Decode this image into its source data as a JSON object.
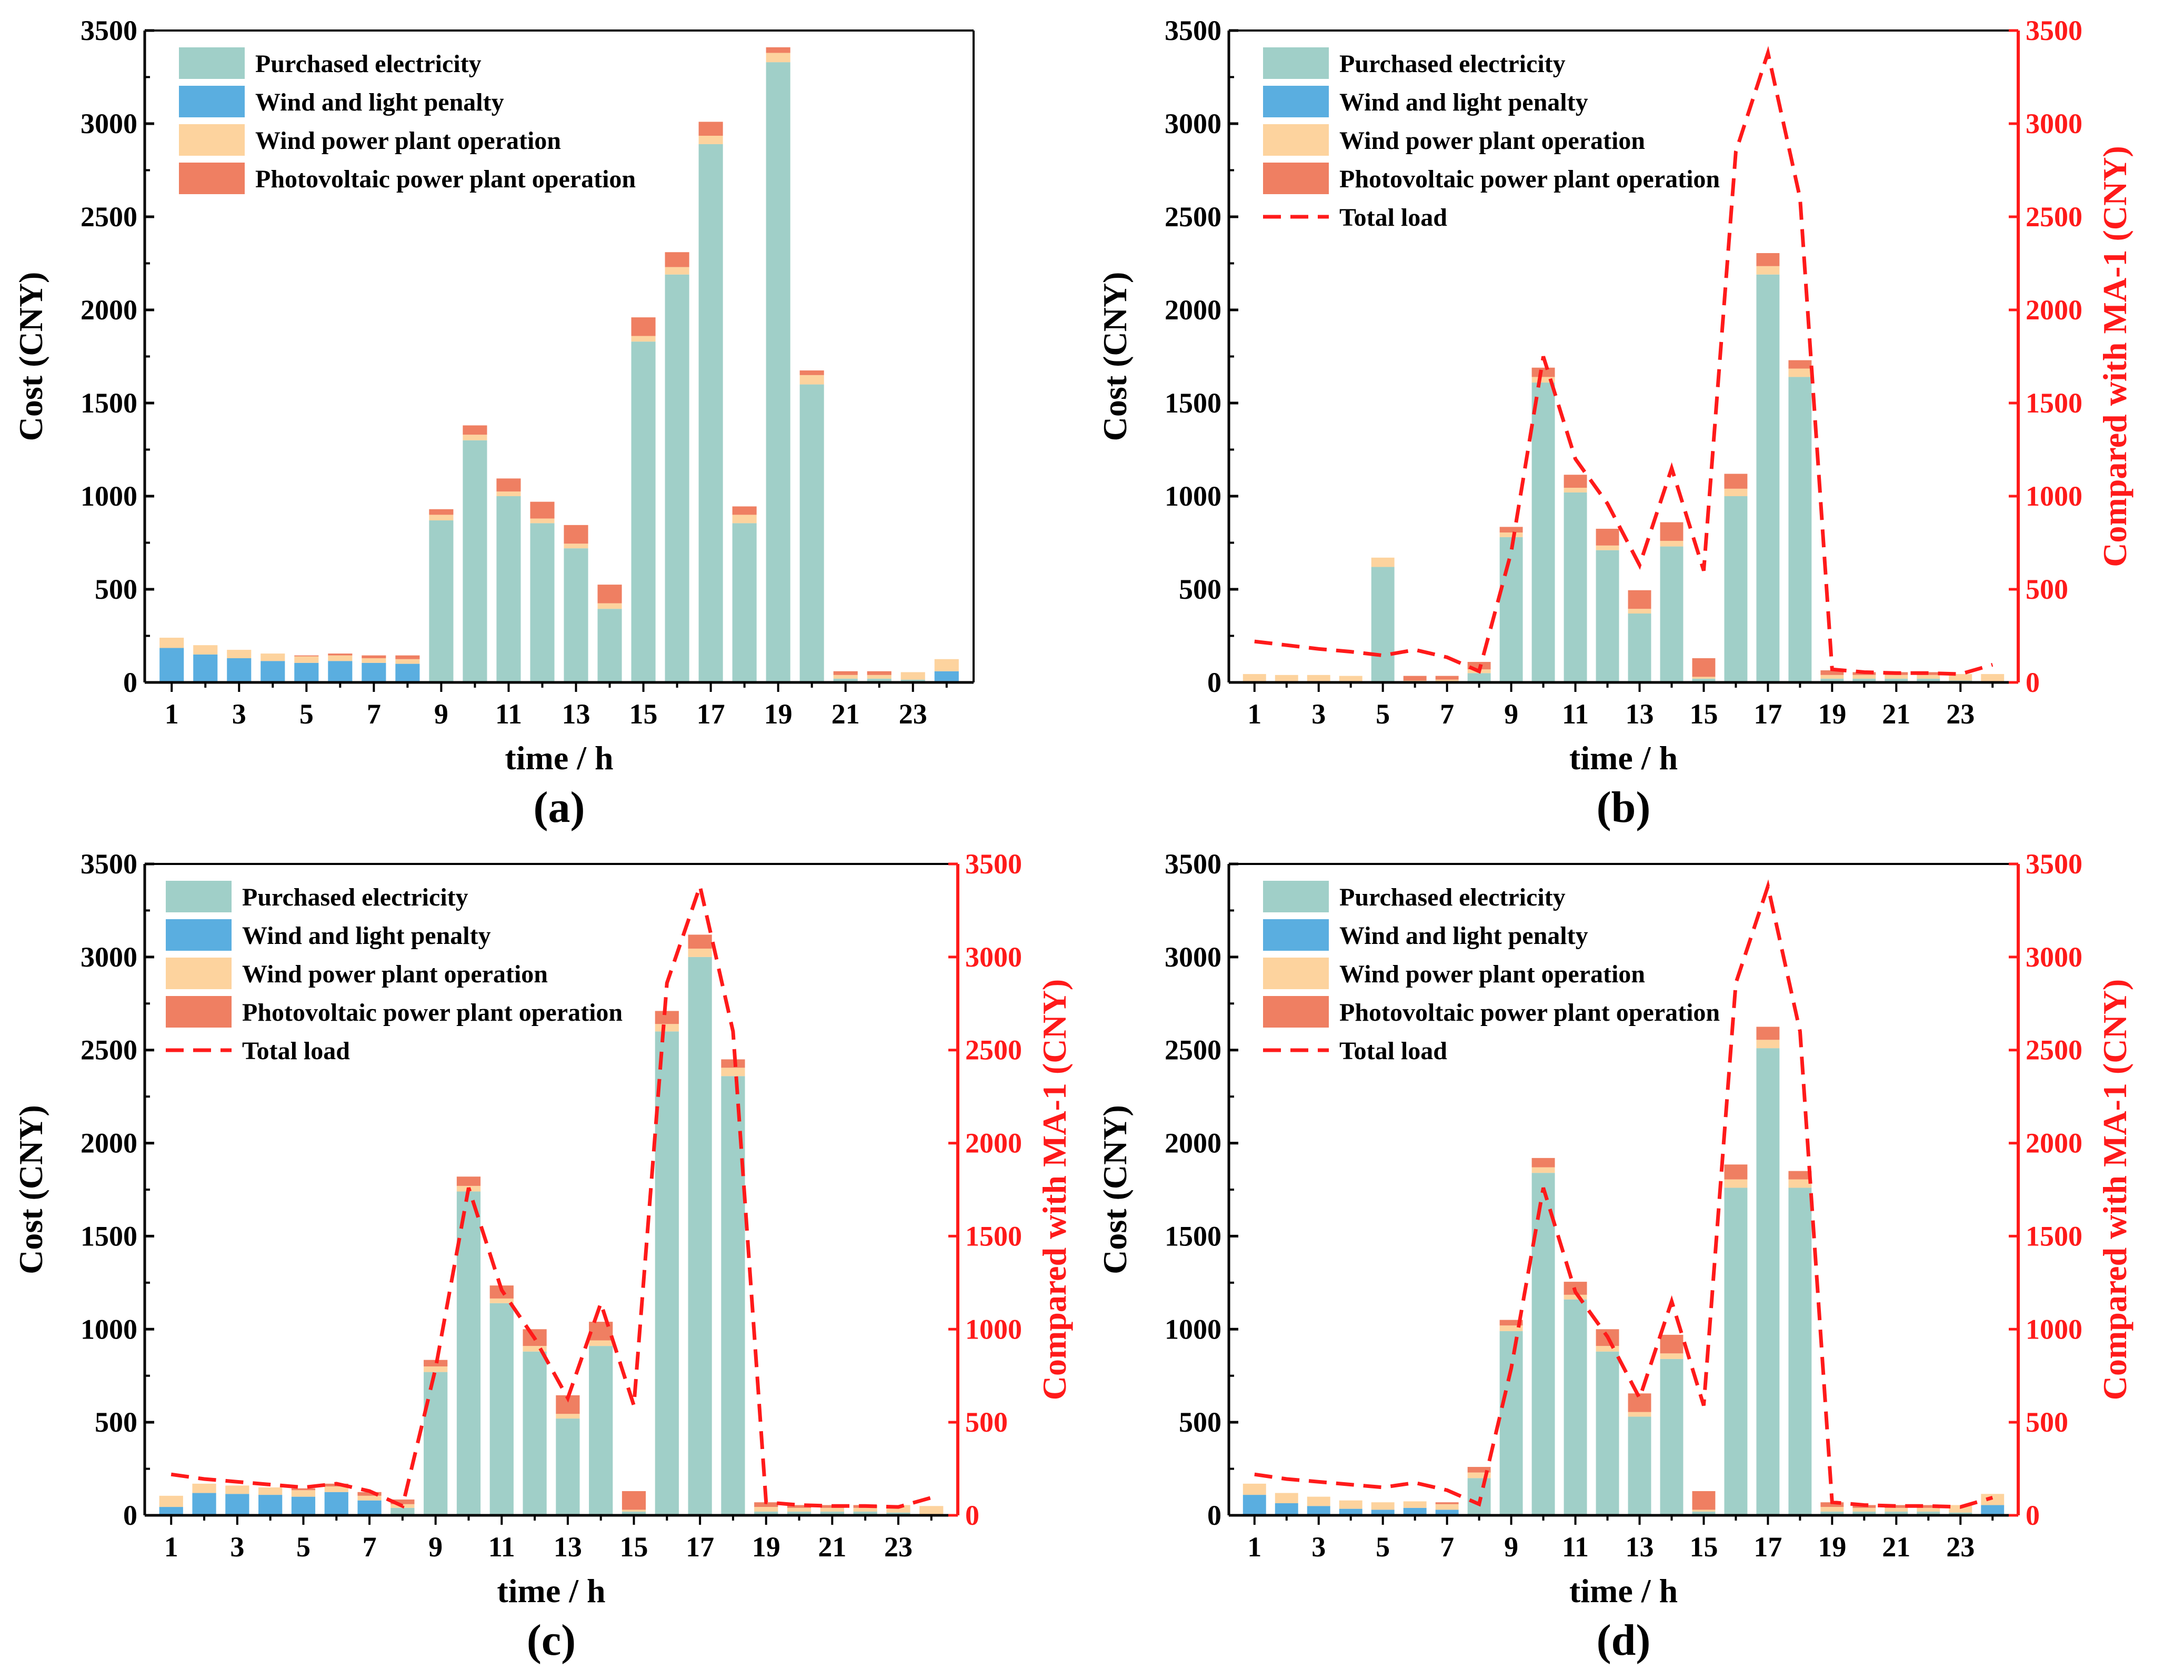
{
  "chart_data": [
    {
      "panel": "(a)",
      "type": "bar",
      "stacked": true,
      "xlabel": "time / h",
      "ylabel": "Cost (CNY)",
      "ylim": [
        0,
        3500
      ],
      "yticks": [
        0,
        500,
        1000,
        1500,
        2000,
        2500,
        3000,
        3500
      ],
      "x": [
        1,
        2,
        3,
        4,
        5,
        6,
        7,
        8,
        9,
        10,
        11,
        12,
        13,
        14,
        15,
        16,
        17,
        18,
        19,
        20,
        21,
        22,
        23,
        24
      ],
      "xtick_labels": [
        "1",
        "3",
        "5",
        "7",
        "9",
        "11",
        "13",
        "15",
        "17",
        "19",
        "21",
        "23"
      ],
      "series": [
        {
          "name": "Wind and light penalty",
          "color": "#5aaee0",
          "values": [
            185,
            150,
            130,
            115,
            105,
            115,
            105,
            100,
            0,
            0,
            0,
            0,
            0,
            0,
            0,
            0,
            0,
            0,
            0,
            0,
            0,
            0,
            0,
            60
          ]
        },
        {
          "name": "Purchased electricity",
          "color": "#a0cfc8",
          "values": [
            0,
            0,
            0,
            0,
            0,
            0,
            0,
            0,
            870,
            1300,
            1000,
            855,
            720,
            395,
            1830,
            2190,
            2890,
            855,
            3330,
            1600,
            20,
            20,
            15,
            0
          ]
        },
        {
          "name": "Wind power plant operation",
          "color": "#fdd39e",
          "values": [
            55,
            50,
            45,
            40,
            35,
            30,
            25,
            25,
            30,
            30,
            25,
            25,
            25,
            30,
            30,
            40,
            45,
            45,
            50,
            50,
            20,
            20,
            40,
            65
          ]
        },
        {
          "name": "Photovoltaic power plant operation",
          "color": "#ef7f62",
          "values": [
            0,
            0,
            0,
            0,
            5,
            10,
            15,
            20,
            30,
            50,
            70,
            90,
            100,
            100,
            100,
            80,
            75,
            45,
            30,
            25,
            20,
            20,
            0,
            0
          ]
        }
      ],
      "legend": {
        "position": "top-left",
        "entries": [
          "Purchased electricity",
          "Wind and light penalty",
          "Wind power plant operation",
          "Photovoltaic power plant operation"
        ]
      },
      "grid": false
    },
    {
      "panel": "(b)",
      "type": "bar",
      "stacked": true,
      "xlabel": "time / h",
      "ylabel": "Cost (CNY)",
      "y2label": "Compared with MA-1 (CNY)",
      "ylim": [
        0,
        3500
      ],
      "y2lim": [
        0,
        3500
      ],
      "yticks": [
        0,
        500,
        1000,
        1500,
        2000,
        2500,
        3000,
        3500
      ],
      "x": [
        1,
        2,
        3,
        4,
        5,
        6,
        7,
        8,
        9,
        10,
        11,
        12,
        13,
        14,
        15,
        16,
        17,
        18,
        19,
        20,
        21,
        22,
        23,
        24
      ],
      "xtick_labels": [
        "1",
        "3",
        "5",
        "7",
        "9",
        "11",
        "13",
        "15",
        "17",
        "19",
        "21",
        "23"
      ],
      "series": [
        {
          "name": "Wind and light penalty",
          "color": "#5aaee0",
          "values": [
            0,
            0,
            0,
            0,
            0,
            0,
            0,
            0,
            0,
            0,
            0,
            0,
            0,
            0,
            0,
            0,
            0,
            0,
            0,
            0,
            0,
            0,
            0,
            0
          ]
        },
        {
          "name": "Purchased electricity",
          "color": "#a0cfc8",
          "values": [
            0,
            0,
            0,
            0,
            620,
            0,
            0,
            50,
            780,
            1610,
            1020,
            710,
            370,
            730,
            20,
            1000,
            2190,
            1640,
            20,
            20,
            20,
            20,
            10,
            0
          ]
        },
        {
          "name": "Wind power plant operation",
          "color": "#fdd39e",
          "values": [
            45,
            40,
            40,
            35,
            50,
            10,
            15,
            20,
            25,
            30,
            25,
            25,
            25,
            30,
            10,
            40,
            45,
            45,
            20,
            20,
            20,
            20,
            35,
            45
          ]
        },
        {
          "name": "Photovoltaic power plant operation",
          "color": "#ef7f62",
          "values": [
            0,
            0,
            0,
            0,
            0,
            25,
            20,
            40,
            30,
            50,
            70,
            90,
            100,
            100,
            100,
            80,
            70,
            45,
            25,
            15,
            15,
            15,
            0,
            0
          ]
        },
        {
          "name": "Total load",
          "type": "line",
          "axis": "right",
          "color": "#ff1a1a",
          "dash": true,
          "values": [
            220,
            200,
            180,
            165,
            145,
            175,
            135,
            60,
            700,
            1750,
            1200,
            960,
            630,
            1150,
            600,
            2850,
            3380,
            2600,
            70,
            55,
            50,
            50,
            45,
            95
          ]
        }
      ],
      "legend": {
        "position": "top-left",
        "entries": [
          "Purchased electricity",
          "Wind and light penalty",
          "Wind power plant operation",
          "Photovoltaic power plant operation",
          "Total load"
        ]
      },
      "grid": false
    },
    {
      "panel": "(c)",
      "type": "bar",
      "stacked": true,
      "xlabel": "time / h",
      "ylabel": "Cost (CNY)",
      "y2label": "Compared with MA-1 (CNY)",
      "ylim": [
        0,
        3500
      ],
      "y2lim": [
        0,
        3500
      ],
      "yticks": [
        0,
        500,
        1000,
        1500,
        2000,
        2500,
        3000,
        3500
      ],
      "x": [
        1,
        2,
        3,
        4,
        5,
        6,
        7,
        8,
        9,
        10,
        11,
        12,
        13,
        14,
        15,
        16,
        17,
        18,
        19,
        20,
        21,
        22,
        23,
        24
      ],
      "xtick_labels": [
        "1",
        "3",
        "5",
        "7",
        "9",
        "11",
        "13",
        "15",
        "17",
        "19",
        "21",
        "23"
      ],
      "series": [
        {
          "name": "Wind and light penalty",
          "color": "#5aaee0",
          "values": [
            45,
            120,
            115,
            110,
            100,
            125,
            80,
            0,
            0,
            0,
            0,
            0,
            0,
            0,
            0,
            0,
            0,
            0,
            0,
            0,
            0,
            0,
            0,
            0
          ]
        },
        {
          "name": "Purchased electricity",
          "color": "#a0cfc8",
          "values": [
            0,
            0,
            0,
            0,
            0,
            0,
            0,
            40,
            770,
            1740,
            1140,
            880,
            520,
            910,
            20,
            2600,
            3000,
            2360,
            20,
            20,
            20,
            20,
            15,
            0
          ]
        },
        {
          "name": "Wind power plant operation",
          "color": "#fdd39e",
          "values": [
            60,
            50,
            45,
            40,
            35,
            30,
            25,
            20,
            30,
            30,
            25,
            30,
            25,
            30,
            10,
            40,
            45,
            45,
            25,
            20,
            20,
            20,
            40,
            50
          ]
        },
        {
          "name": "Photovoltaic power plant operation",
          "color": "#ef7f62",
          "values": [
            0,
            0,
            0,
            0,
            10,
            15,
            20,
            25,
            35,
            50,
            70,
            90,
            100,
            100,
            100,
            70,
            75,
            45,
            25,
            15,
            15,
            15,
            0,
            0
          ]
        },
        {
          "name": "Total load",
          "type": "line",
          "axis": "right",
          "color": "#ff1a1a",
          "dash": true,
          "values": [
            220,
            195,
            180,
            165,
            150,
            170,
            130,
            50,
            790,
            1760,
            1210,
            950,
            630,
            1140,
            590,
            2860,
            3380,
            2600,
            70,
            55,
            50,
            50,
            45,
            95
          ]
        }
      ],
      "legend": {
        "position": "top-left",
        "entries": [
          "Purchased electricity",
          "Wind and light penalty",
          "Wind power plant operation",
          "Photovoltaic power plant operation",
          "Total load"
        ]
      },
      "grid": false
    },
    {
      "panel": "(d)",
      "type": "bar",
      "stacked": true,
      "xlabel": "time / h",
      "ylabel": "Cost (CNY)",
      "y2label": "Compared with MA-1 (CNY)",
      "ylim": [
        0,
        3500
      ],
      "y2lim": [
        0,
        3500
      ],
      "yticks": [
        0,
        500,
        1000,
        1500,
        2000,
        2500,
        3000,
        3500
      ],
      "x": [
        1,
        2,
        3,
        4,
        5,
        6,
        7,
        8,
        9,
        10,
        11,
        12,
        13,
        14,
        15,
        16,
        17,
        18,
        19,
        20,
        21,
        22,
        23,
        24
      ],
      "xtick_labels": [
        "1",
        "3",
        "5",
        "7",
        "9",
        "11",
        "13",
        "15",
        "17",
        "19",
        "21",
        "23"
      ],
      "series": [
        {
          "name": "Wind and light penalty",
          "color": "#5aaee0",
          "values": [
            110,
            65,
            50,
            35,
            30,
            40,
            30,
            0,
            0,
            0,
            0,
            0,
            0,
            0,
            0,
            0,
            0,
            0,
            0,
            0,
            0,
            0,
            0,
            55
          ]
        },
        {
          "name": "Purchased electricity",
          "color": "#a0cfc8",
          "values": [
            0,
            0,
            0,
            0,
            0,
            0,
            0,
            200,
            990,
            1840,
            1160,
            880,
            530,
            840,
            20,
            1760,
            2510,
            1760,
            20,
            20,
            20,
            20,
            15,
            0
          ]
        },
        {
          "name": "Wind power plant operation",
          "color": "#fdd39e",
          "values": [
            60,
            55,
            50,
            45,
            40,
            35,
            30,
            30,
            30,
            30,
            25,
            30,
            25,
            30,
            10,
            45,
            45,
            45,
            25,
            20,
            20,
            20,
            40,
            60
          ]
        },
        {
          "name": "Photovoltaic power plant operation",
          "color": "#ef7f62",
          "values": [
            0,
            0,
            0,
            0,
            0,
            0,
            10,
            30,
            30,
            50,
            70,
            90,
            100,
            100,
            100,
            80,
            70,
            45,
            25,
            15,
            15,
            15,
            0,
            0
          ]
        },
        {
          "name": "Total load",
          "type": "line",
          "axis": "right",
          "color": "#ff1a1a",
          "dash": true,
          "values": [
            220,
            195,
            180,
            165,
            150,
            175,
            135,
            60,
            790,
            1760,
            1200,
            960,
            630,
            1150,
            590,
            2860,
            3380,
            2600,
            70,
            55,
            50,
            50,
            45,
            95
          ]
        }
      ],
      "legend": {
        "position": "top-left",
        "entries": [
          "Purchased electricity",
          "Wind and light penalty",
          "Wind power plant operation",
          "Photovoltaic power plant operation",
          "Total load"
        ]
      },
      "grid": false
    }
  ]
}
